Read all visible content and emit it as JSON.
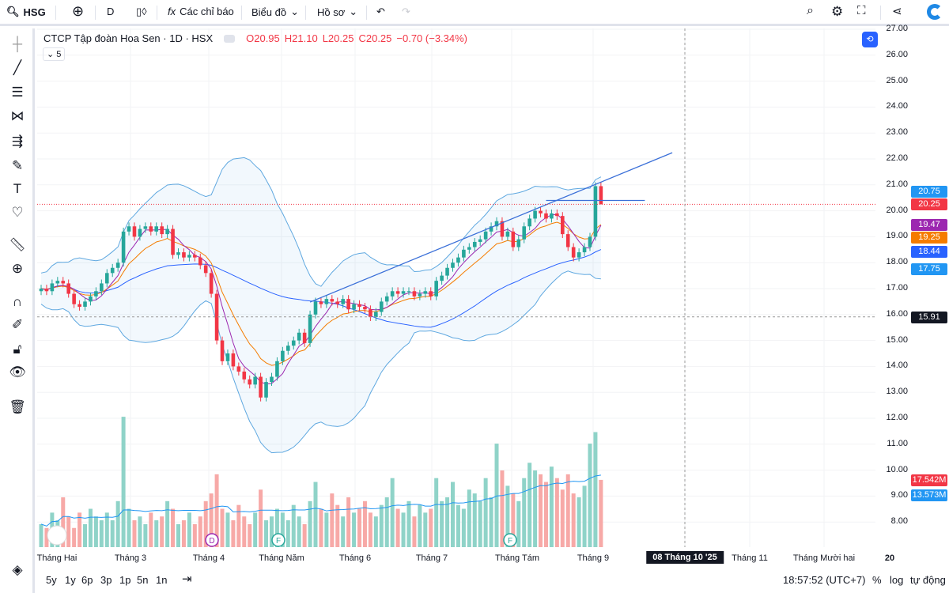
{
  "toolbar": {
    "symbol": "HSG",
    "interval": "D",
    "indicators": "Các chỉ báo",
    "chart": "Biểu đồ",
    "profile": "Hồ sơ"
  },
  "legend": {
    "title": "CTCP Tập đoàn Hoa Sen · 1D · HSX",
    "o": "O20.95",
    "h": "H21.10",
    "l": "L20.25",
    "c": "C20.25",
    "chg": "−0.70 (−3.34%)",
    "collapse": "5"
  },
  "price_axis": [
    "27.00",
    "26.00",
    "25.00",
    "24.00",
    "23.00",
    "22.00",
    "21.00",
    "20.00",
    "19.00",
    "18.00",
    "17.00",
    "16.00",
    "15.00",
    "14.00",
    "13.00",
    "12.00",
    "11.00",
    "10.00",
    "9.00",
    "8.00"
  ],
  "price_labels": [
    {
      "text": "20.75",
      "color": "#2196f3",
      "price": 20.75
    },
    {
      "text": "20.25",
      "color": "#f23645",
      "price": 20.25
    },
    {
      "text": "19.47",
      "color": "#9c27b0",
      "price": 19.47
    },
    {
      "text": "19.25",
      "color": "#f57c00",
      "price": 19.25
    },
    {
      "text": "18.44",
      "color": "#2962ff",
      "price": 18.44
    },
    {
      "text": "17.75",
      "color": "#2196f3",
      "price": 17.75
    },
    {
      "text": "15.91",
      "color": "#131722",
      "price": 15.91
    },
    {
      "text": "17.542M",
      "color": "#f23645",
      "vol": 17.542
    },
    {
      "text": "13.573M",
      "color": "#2196f3",
      "vol": 13.573
    }
  ],
  "x_axis": [
    "Tháng Hai",
    "Tháng 3",
    "Tháng 4",
    "Tháng Năm",
    "Tháng 6",
    "Tháng 7",
    "Tháng Tám",
    "Tháng 9",
    "08 Tháng 10 '25",
    "Tháng 11",
    "Tháng Mười hai",
    "20"
  ],
  "events": [
    "D",
    "F",
    "F"
  ],
  "ranges": [
    "5y",
    "1y",
    "6p",
    "3p",
    "1p",
    "5n",
    "1n"
  ],
  "footer": {
    "time": "18:57:52 (UTC+7)",
    "percent": "%",
    "log": "log",
    "auto": "tự động"
  },
  "colors": {
    "up": "#26a69a",
    "down": "#f23645",
    "vol_up": "#8fd3c8",
    "vol_down": "#f7a9a7",
    "bb": "#5fa8e0",
    "accent": "#2962ff"
  },
  "chart_data": {
    "type": "candlestick",
    "closes": [
      17.0,
      16.9,
      17.2,
      17.3,
      17.2,
      16.8,
      16.4,
      16.3,
      16.5,
      16.7,
      16.9,
      17.2,
      17.6,
      17.8,
      18.0,
      19.2,
      19.4,
      19.0,
      19.3,
      19.4,
      19.2,
      19.4,
      19.1,
      19.3,
      18.3,
      18.4,
      18.2,
      18.3,
      18.2,
      17.9,
      17.6,
      16.8,
      15.0,
      14.2,
      14.5,
      14.0,
      13.8,
      13.5,
      13.3,
      13.6,
      12.8,
      13.4,
      13.6,
      14.2,
      14.6,
      14.8,
      15.0,
      15.3,
      14.9,
      16.0,
      16.5,
      16.4,
      16.6,
      16.5,
      16.4,
      16.6,
      16.2,
      16.4,
      16.3,
      16.2,
      15.9,
      16.1,
      16.5,
      16.7,
      16.9,
      16.8,
      16.9,
      16.9,
      16.7,
      16.8,
      16.9,
      16.7,
      17.3,
      17.5,
      17.8,
      18.0,
      18.2,
      18.5,
      18.6,
      18.8,
      18.9,
      19.2,
      19.4,
      19.6,
      19.0,
      19.2,
      18.6,
      18.9,
      19.4,
      19.7,
      20.0,
      19.9,
      19.7,
      19.9,
      19.8,
      19.1,
      18.6,
      18.2,
      18.4,
      18.6,
      19.0,
      20.95,
      20.25
    ],
    "volumes": [
      6,
      5,
      9,
      7,
      13,
      8,
      5,
      9,
      6,
      10,
      8,
      7,
      9,
      7,
      12,
      34,
      10,
      7,
      8,
      6,
      9,
      7,
      8,
      12,
      10,
      6,
      7,
      9,
      6,
      8,
      12,
      14,
      19,
      10,
      9,
      7,
      11,
      8,
      6,
      9,
      15,
      7,
      8,
      10,
      9,
      7,
      11,
      8,
      6,
      12,
      17,
      10,
      9,
      14,
      11,
      8,
      13,
      9,
      10,
      12,
      9,
      8,
      11,
      13,
      18,
      10,
      9,
      12,
      8,
      11,
      9,
      10,
      18,
      12,
      13,
      17,
      11,
      10,
      15,
      14,
      12,
      18,
      13,
      27,
      20,
      16,
      14,
      12,
      18,
      22,
      20,
      19,
      17,
      21,
      18,
      15,
      19,
      14,
      13,
      16,
      27,
      30,
      17.542
    ],
    "trendlines": [
      {
        "from": [
          49,
          16.48
        ],
        "to": [
          115,
          22.24
        ]
      },
      {
        "from": [
          92,
          20.4
        ],
        "to": [
          110,
          20.4
        ]
      }
    ],
    "ylim": [
      8,
      27
    ]
  }
}
